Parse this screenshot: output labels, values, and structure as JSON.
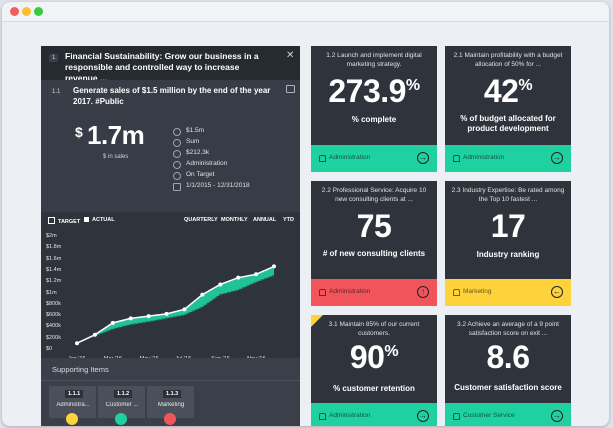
{
  "colors": {
    "green": "#1fd1a0",
    "red": "#f2545b",
    "yellow": "#fdd23b",
    "panel": "#2f333c"
  },
  "left": {
    "header_num": "1",
    "header_title": "Financial Sustainability: Grow our business in a responsible and controlled way to increase revenue ...",
    "close_icon": "close-icon",
    "sub_num": "1.1",
    "sub_title": "Generate sales of $1.5 million by the end of the year 2017. #Public",
    "currency": "$",
    "big_value": "1.7m",
    "big_label": "$ in sales",
    "meta": [
      {
        "icon": "target-icon",
        "text": "$1.5m"
      },
      {
        "icon": "sum-icon",
        "text": "Sum"
      },
      {
        "icon": "dollar-icon",
        "text": "$212.3k"
      },
      {
        "icon": "person-icon",
        "text": "Administration"
      },
      {
        "icon": "clock-icon",
        "text": "On Target"
      },
      {
        "icon": "calendar-icon",
        "text": "1/1/2015 - 12/31/2018"
      }
    ],
    "legend": {
      "target": "TARGET",
      "actual": "ACTUAL"
    },
    "tabs": {
      "quarterly": "QUARTERLY",
      "monthly": "MONTHLY",
      "annual": "ANNUAL",
      "ytd": "YTD"
    },
    "supporting_title": "Supporting Items",
    "supporting_items": [
      {
        "num": "1.1.1",
        "label": "Administra...",
        "color": "#fdd23b"
      },
      {
        "num": "1.1.2",
        "label": "Customer ...",
        "color": "#1fd1a0"
      },
      {
        "num": "1.1.3",
        "label": "Marketing",
        "color": "#f2545b"
      }
    ]
  },
  "chart_data": {
    "type": "line",
    "x": [
      "Jan '16",
      "",
      "Mar '16",
      "",
      "May '16",
      "",
      "Jul '16",
      "",
      "Sep '16",
      "",
      "Nov '16",
      ""
    ],
    "x_tick_labels": [
      "Jan '16",
      "Mar '16",
      "May '16",
      "Jul '16",
      "Sep '16",
      "Nov '16"
    ],
    "y_tick_labels": [
      "$0",
      "$200k",
      "$400k",
      "$600k",
      "$800k",
      "$1m",
      "$1.2m",
      "$1.4m",
      "$1.6m",
      "$1.8m",
      "$2m"
    ],
    "ylim": [
      0,
      2000000
    ],
    "series": [
      {
        "name": "TARGET",
        "values": [
          120000,
          250000,
          370000,
          450000,
          500000,
          560000,
          620000,
          760000,
          980000,
          1060000,
          1200000,
          1320000
        ]
      },
      {
        "name": "ACTUAL",
        "values": [
          120000,
          270000,
          480000,
          560000,
          600000,
          640000,
          720000,
          980000,
          1160000,
          1280000,
          1340000,
          1480000
        ]
      }
    ]
  },
  "cards": [
    {
      "id": "1.2",
      "desc": "1.2 Launch and implement digital marketing strategy.",
      "value": "273.9",
      "suffix": "%",
      "label": "% complete",
      "footer": "Administration",
      "color": "#1fd1a0",
      "arrow": "→"
    },
    {
      "id": "2.1",
      "desc": "2.1 Maintain profitability with a budget allocation of 50% for ...",
      "value": "42",
      "suffix": "%",
      "label": "% of budget allocated for product development",
      "footer": "Administration",
      "color": "#1fd1a0",
      "arrow": "→"
    },
    {
      "id": "2.2",
      "desc": "2.2 Professional Service: Acquire 10 new consulting clients at ...",
      "value": "75",
      "suffix": "",
      "label": "# of new consulting clients",
      "footer": "Administration",
      "color": "#f2545b",
      "arrow": "↑"
    },
    {
      "id": "2.3",
      "desc": "2.3 Industry Expertise: Be rated among the Top 10 fastest ...",
      "value": "17",
      "suffix": "",
      "label": "Industry ranking",
      "footer": "Marketing",
      "color": "#fdd23b",
      "arrow": "←"
    },
    {
      "id": "3.1",
      "desc": "3.1 Maintain 85% of our current customers.",
      "value": "90",
      "suffix": "%",
      "label": "% customer retention",
      "footer": "Administration",
      "color": "#1fd1a0",
      "arrow": "→"
    },
    {
      "id": "3.2",
      "desc": "3.2 Achieve an average of a 9 point satisfaction score on exit ...",
      "value": "8.6",
      "suffix": "",
      "label": "Customer satisfaction score",
      "footer": "Customer Service",
      "color": "#1fd1a0",
      "arrow": "→"
    }
  ]
}
